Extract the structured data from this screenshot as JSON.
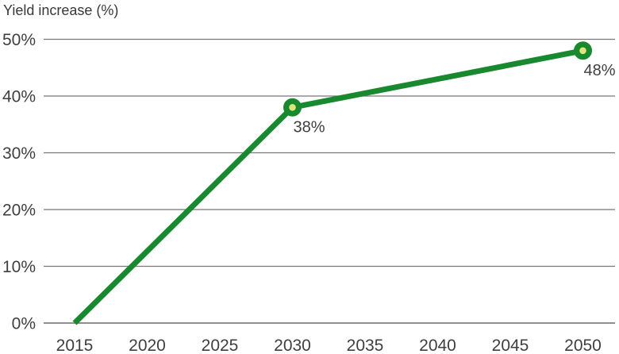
{
  "chart_data": {
    "type": "line",
    "title": "Yield increase (%)",
    "series": [
      {
        "name": "Yield increase",
        "x": [
          2015,
          2030,
          2050
        ],
        "y": [
          0,
          38,
          48
        ]
      }
    ],
    "x_ticks": [
      2015,
      2020,
      2025,
      2030,
      2035,
      2040,
      2045,
      2050
    ],
    "y_ticks": [
      0,
      10,
      20,
      30,
      40,
      50
    ],
    "y_tick_suffix": "%",
    "xlim": [
      2015,
      2050
    ],
    "ylim": [
      0,
      50
    ],
    "grid": "horizontal",
    "legend": "none",
    "annotations": [
      {
        "x": 2030,
        "y": 38,
        "label": "38%"
      },
      {
        "x": 2050,
        "y": 48,
        "label": "48%"
      }
    ],
    "colors": {
      "line": "#18892e",
      "marker_outer": "#18892e",
      "marker_inner": "#dbe77a",
      "grid": "#777777",
      "axis": "#8f8f8f",
      "tick_text": "#3f3f3f",
      "title_text": "#383838",
      "annotation_text": "#3f3f3f",
      "background": "#ffffff"
    }
  }
}
